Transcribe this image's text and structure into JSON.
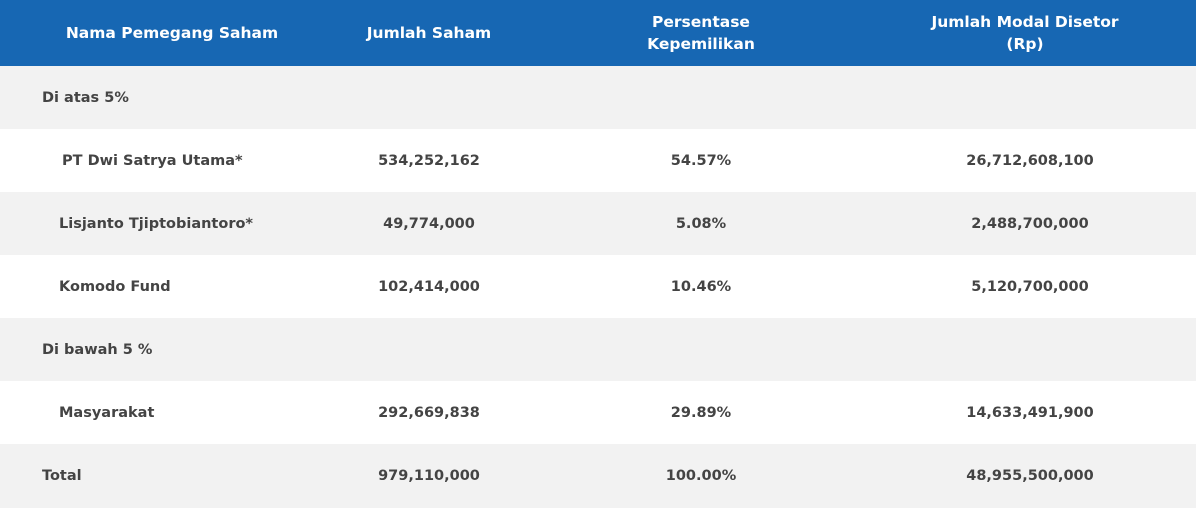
{
  "table": {
    "headers": {
      "name": "Nama Pemegang Saham",
      "shares": "Jumlah Saham",
      "percentage_line1": "Persentase",
      "percentage_line2": "Kepemilikan",
      "capital_line1": "Jumlah Modal Disetor",
      "capital_line2": "(Rp)"
    },
    "groups": {
      "above": "Di atas 5%",
      "below": "Di bawah 5 %"
    },
    "rows": [
      {
        "name": "PT Dwi Satrya Utama*",
        "shares": "534,252,162",
        "percentage": "54.57%",
        "capital": "26,712,608,100"
      },
      {
        "name": "Lisjanto Tjiptobiantoro*",
        "shares": "49,774,000",
        "percentage": "5.08%",
        "capital": "2,488,700,000"
      },
      {
        "name": "Komodo Fund",
        "shares": "102,414,000",
        "percentage": "10.46%",
        "capital": "5,120,700,000"
      },
      {
        "name": "Masyarakat",
        "shares": "292,669,838",
        "percentage": "29.89%",
        "capital": "14,633,491,900"
      }
    ],
    "total": {
      "name": "Total",
      "shares": "979,110,000",
      "percentage": "100.00%",
      "capital": "48,955,500,000"
    }
  },
  "colors": {
    "header_bg": "#1767b3",
    "header_text": "#ffffff",
    "row_gray": "#f2f2f2",
    "text": "#444444"
  }
}
